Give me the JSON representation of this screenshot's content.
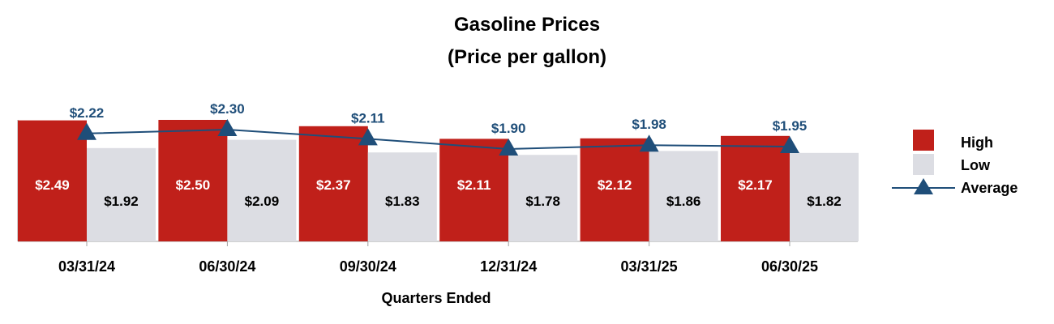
{
  "chart_data": {
    "type": "bar",
    "title": "Gasoline Prices",
    "subtitle": "(Price per gallon)",
    "xlabel": "Quarters Ended",
    "ylabel": "",
    "categories": [
      "03/31/24",
      "06/30/24",
      "09/30/24",
      "12/31/24",
      "03/31/25",
      "06/30/25"
    ],
    "series": [
      {
        "name": "High",
        "type": "bar",
        "color": "#c0201a",
        "values": [
          2.49,
          2.5,
          2.37,
          2.11,
          2.12,
          2.17
        ],
        "labels": [
          "$2.49",
          "$2.50",
          "$2.37",
          "$2.11",
          "$2.12",
          "$2.17"
        ]
      },
      {
        "name": "Low",
        "type": "bar",
        "color": "#dcdde3",
        "values": [
          1.92,
          2.09,
          1.83,
          1.78,
          1.86,
          1.82
        ],
        "labels": [
          "$1.92",
          "$2.09",
          "$1.83",
          "$1.78",
          "$1.86",
          "$1.82"
        ]
      },
      {
        "name": "Average",
        "type": "line",
        "color": "#1f4e79",
        "values": [
          2.22,
          2.3,
          2.11,
          1.9,
          1.98,
          1.95
        ],
        "labels": [
          "$2.22",
          "$2.30",
          "$2.11",
          "$1.90",
          "$1.98",
          "$1.95"
        ]
      }
    ],
    "ylim": [
      0,
      2.6
    ],
    "grid": false,
    "legend_position": "right"
  }
}
